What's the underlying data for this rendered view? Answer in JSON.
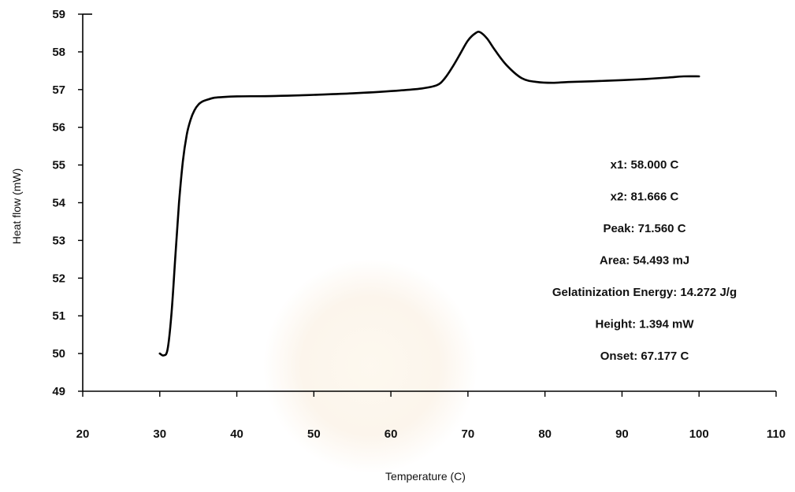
{
  "chart_data": {
    "type": "line",
    "title": "",
    "xlabel": "Temperature (C)",
    "ylabel": "Heat flow (mW)",
    "xlim": [
      20,
      110
    ],
    "ylim": [
      49,
      59
    ],
    "xticks": [
      20,
      30,
      40,
      50,
      60,
      70,
      80,
      90,
      100,
      110
    ],
    "yticks": [
      49,
      50,
      51,
      52,
      53,
      54,
      55,
      56,
      57,
      58,
      59
    ],
    "grid": false,
    "legend": "none",
    "series": [
      {
        "color": "#000000",
        "x": [
          30.0,
          30.5,
          31.0,
          31.5,
          32.0,
          32.5,
          33.0,
          33.5,
          34.0,
          34.5,
          35.0,
          35.5,
          36.0,
          37.0,
          38.0,
          40.0,
          45.0,
          50.0,
          55.0,
          60.0,
          64.0,
          66.0,
          67.0,
          68.0,
          69.0,
          70.0,
          71.0,
          71.6,
          72.5,
          73.5,
          75.0,
          77.0,
          79.0,
          81.0,
          83.0,
          86.0,
          90.0,
          93.0,
          96.0,
          98.0,
          100.0
        ],
        "y": [
          50.0,
          49.95,
          50.1,
          51.0,
          52.5,
          54.0,
          55.1,
          55.8,
          56.2,
          56.45,
          56.6,
          56.68,
          56.72,
          56.78,
          56.8,
          56.82,
          56.83,
          56.86,
          56.9,
          56.96,
          57.03,
          57.12,
          57.3,
          57.6,
          57.95,
          58.3,
          58.5,
          58.52,
          58.35,
          58.05,
          57.65,
          57.3,
          57.2,
          57.18,
          57.2,
          57.22,
          57.25,
          57.28,
          57.32,
          57.35,
          57.35
        ]
      }
    ],
    "annotations": [
      "x1: 58.000 C",
      "x2: 81.666 C",
      "Peak: 71.560 C",
      "Area: 54.493 mJ",
      "Gelatinization  Energy: 14.272 J/g",
      "Height: 1.394 mW",
      "Onset: 67.177 C"
    ]
  }
}
